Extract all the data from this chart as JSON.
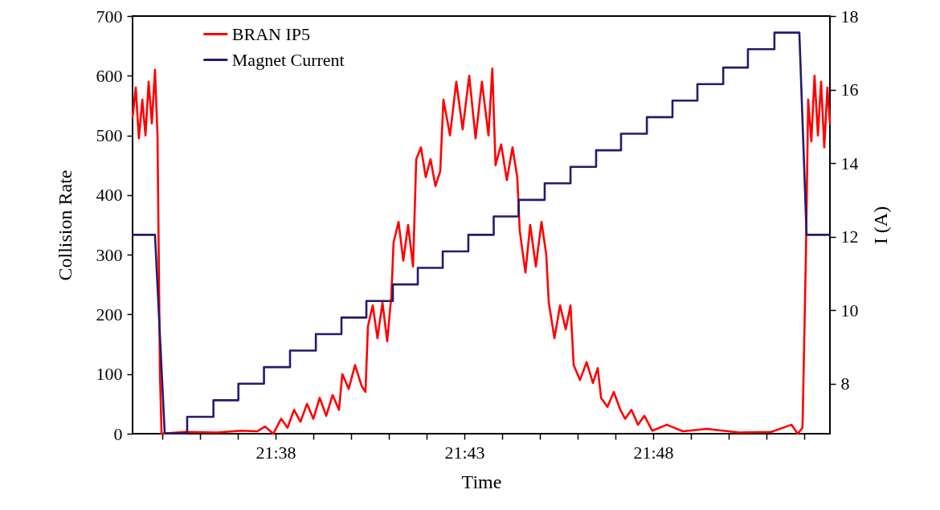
{
  "chart_data": {
    "type": "line",
    "xlabel": "Time",
    "ylabel": "Collision Rate",
    "y2label": "I (A)",
    "xlim": [
      21.5702,
      21.878
    ],
    "xticks": [
      {
        "value": 21.58333,
        "label": null
      },
      {
        "value": 21.6,
        "label": null
      },
      {
        "value": 21.61667,
        "label": null
      },
      {
        "value": 21.63333,
        "label": "21:38"
      },
      {
        "value": 21.65,
        "label": null
      },
      {
        "value": 21.66667,
        "label": null
      },
      {
        "value": 21.68333,
        "label": null
      },
      {
        "value": 21.7,
        "label": null
      },
      {
        "value": 21.71667,
        "label": "21:43"
      },
      {
        "value": 21.73333,
        "label": null
      },
      {
        "value": 21.75,
        "label": null
      },
      {
        "value": 21.76667,
        "label": null
      },
      {
        "value": 21.78333,
        "label": null
      },
      {
        "value": 21.8,
        "label": "21:48"
      },
      {
        "value": 21.81667,
        "label": null
      },
      {
        "value": 21.83333,
        "label": null
      },
      {
        "value": 21.85,
        "label": null
      },
      {
        "value": 21.86667,
        "label": null
      }
    ],
    "ylim": [
      0,
      700
    ],
    "yticks": [
      0,
      100,
      200,
      300,
      400,
      500,
      600,
      700
    ],
    "y2lim": [
      6.64,
      18
    ],
    "y2ticks": [
      8,
      10,
      12,
      14,
      16,
      18
    ],
    "legend": "top",
    "marker": "none",
    "line_style": "solid",
    "series": [
      {
        "name": "BRAN IP5",
        "color": "#ff0000",
        "x": [
          21.5702,
          21.5716,
          21.573,
          21.5745,
          21.5759,
          21.5773,
          21.5787,
          21.5801,
          21.5812,
          21.5823,
          21.583,
          21.5932,
          21.6074,
          21.6181,
          21.6252,
          21.6287,
          21.6323,
          21.6358,
          21.6386,
          21.6415,
          21.6443,
          21.6472,
          21.65,
          21.6528,
          21.6557,
          21.6585,
          21.6613,
          21.6628,
          21.6656,
          21.6684,
          21.6713,
          21.673,
          21.6741,
          21.6762,
          21.6783,
          21.6805,
          21.6826,
          21.6844,
          21.6854,
          21.6876,
          21.6897,
          21.6918,
          21.694,
          21.6954,
          21.6975,
          21.6996,
          21.7017,
          21.7039,
          21.706,
          21.7074,
          21.7103,
          21.7131,
          21.7159,
          21.7188,
          21.7216,
          21.7244,
          21.7273,
          21.729,
          21.7304,
          21.7329,
          21.7354,
          21.7379,
          21.74,
          21.7411,
          21.7436,
          21.7457,
          21.7482,
          21.7507,
          21.7528,
          21.7539,
          21.7564,
          21.7589,
          21.7614,
          21.7635,
          21.7649,
          21.7677,
          21.7706,
          21.7734,
          21.7755,
          21.777,
          21.7798,
          21.7826,
          21.7855,
          21.7876,
          21.7904,
          21.7933,
          21.7961,
          21.7996,
          21.806,
          21.8131,
          21.8237,
          21.8379,
          21.8521,
          21.861,
          21.8638,
          21.8659,
          21.8674,
          21.8684,
          21.8698,
          21.8712,
          21.8727,
          21.8741,
          21.8755,
          21.8769,
          21.878
        ],
        "values": [
          530,
          580,
          495,
          560,
          500,
          590,
          520,
          610,
          500,
          100,
          0,
          3,
          2,
          5,
          4,
          12,
          0,
          25,
          10,
          40,
          20,
          50,
          25,
          60,
          30,
          65,
          40,
          100,
          75,
          115,
          80,
          70,
          180,
          215,
          160,
          220,
          155,
          230,
          320,
          355,
          290,
          350,
          280,
          460,
          480,
          430,
          460,
          415,
          440,
          560,
          500,
          590,
          510,
          600,
          495,
          590,
          500,
          612,
          450,
          485,
          425,
          480,
          430,
          340,
          270,
          350,
          280,
          355,
          300,
          220,
          160,
          215,
          175,
          215,
          115,
          90,
          120,
          85,
          110,
          60,
          45,
          70,
          40,
          25,
          40,
          15,
          30,
          5,
          15,
          4,
          8,
          2,
          3,
          15,
          0,
          10,
          300,
          560,
          490,
          600,
          500,
          590,
          480,
          580,
          520
        ]
      },
      {
        "name": "Magnet Current",
        "color": "#261a6e",
        "axis": "y2",
        "x": [
          21.5702,
          21.5801,
          21.5844,
          21.5943,
          21.5943,
          21.6059,
          21.6059,
          21.6169,
          21.6169,
          21.6282,
          21.6282,
          21.6397,
          21.6397,
          21.6511,
          21.6511,
          21.6624,
          21.6624,
          21.6734,
          21.6734,
          21.6851,
          21.6851,
          21.6961,
          21.6961,
          21.7071,
          21.7071,
          21.7184,
          21.7184,
          21.7296,
          21.7296,
          21.7406,
          21.7406,
          21.7521,
          21.7521,
          21.7635,
          21.7635,
          21.7748,
          21.7748,
          21.7858,
          21.7858,
          21.7972,
          21.7972,
          21.8085,
          21.8085,
          21.8195,
          21.8195,
          21.8309,
          21.8309,
          21.8418,
          21.8418,
          21.8535,
          21.8535,
          21.8645,
          21.8677,
          21.878
        ],
        "values": [
          12.05,
          12.05,
          6.65,
          6.65,
          7.1,
          7.1,
          7.55,
          7.55,
          8.0,
          8.0,
          8.45,
          8.45,
          8.9,
          8.9,
          9.35,
          9.35,
          9.8,
          9.8,
          10.25,
          10.25,
          10.7,
          10.7,
          11.15,
          11.15,
          11.6,
          11.6,
          12.05,
          12.05,
          12.55,
          12.55,
          13.0,
          13.0,
          13.45,
          13.45,
          13.9,
          13.9,
          14.35,
          14.35,
          14.8,
          14.8,
          15.25,
          15.25,
          15.7,
          15.7,
          16.15,
          16.15,
          16.6,
          16.6,
          17.1,
          17.1,
          17.55,
          17.55,
          12.05,
          12.05
        ]
      }
    ]
  }
}
